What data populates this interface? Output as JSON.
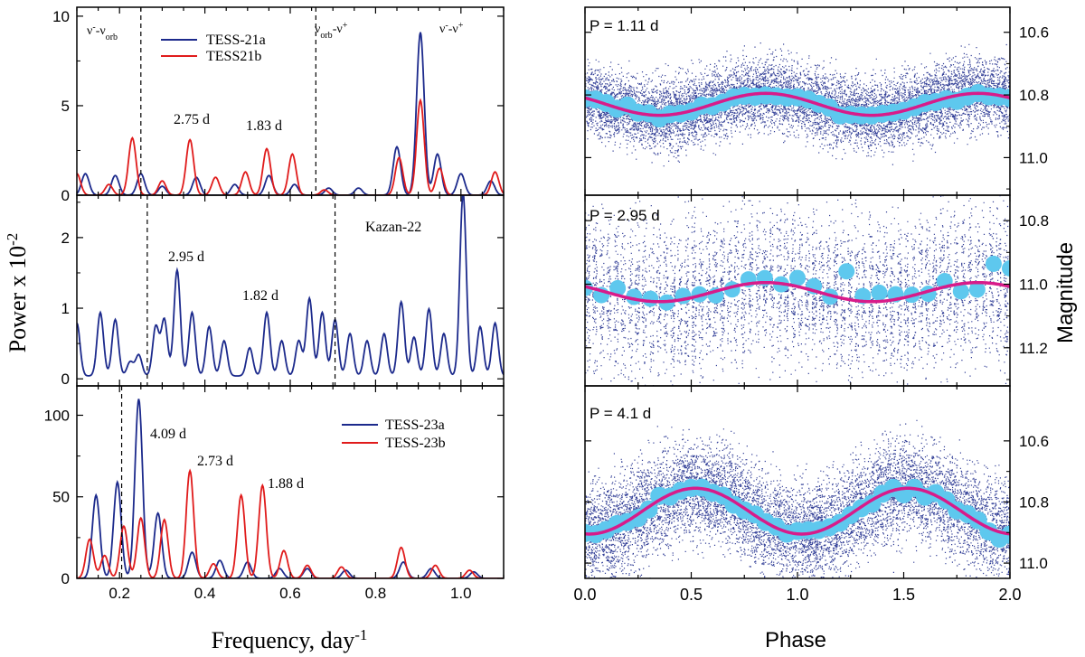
{
  "chart_data": [
    {
      "type": "line",
      "panel": "left-top",
      "xlim": [
        0.1,
        1.1
      ],
      "ylim": [
        0,
        10.5
      ],
      "yticks": [
        0,
        5,
        10
      ],
      "legend": [
        "TESS-21a",
        "TESS21b"
      ],
      "series": [
        {
          "name": "TESS-21a",
          "color": "#1c2a8c",
          "peaks": [
            [
              0.12,
              1.2
            ],
            [
              0.19,
              1.1
            ],
            [
              0.25,
              1.2
            ],
            [
              0.3,
              0.5
            ],
            [
              0.38,
              1.0
            ],
            [
              0.47,
              0.6
            ],
            [
              0.55,
              1.1
            ],
            [
              0.61,
              0.6
            ],
            [
              0.69,
              0.4
            ],
            [
              0.76,
              0.4
            ],
            [
              0.85,
              2.7
            ],
            [
              0.905,
              9.1
            ],
            [
              0.945,
              2.3
            ],
            [
              1.0,
              1.2
            ],
            [
              1.07,
              0.8
            ]
          ]
        },
        {
          "name": "TESS21b",
          "color": "#e01b1b",
          "peaks": [
            [
              0.1,
              1.2
            ],
            [
              0.175,
              0.6
            ],
            [
              0.23,
              3.2
            ],
            [
              0.3,
              0.8
            ],
            [
              0.365,
              3.1
            ],
            [
              0.425,
              1.0
            ],
            [
              0.495,
              1.3
            ],
            [
              0.545,
              2.6
            ],
            [
              0.605,
              2.3
            ],
            [
              0.68,
              0.3
            ],
            [
              0.855,
              2.1
            ],
            [
              0.905,
              5.3
            ],
            [
              0.95,
              1.5
            ],
            [
              1.08,
              1.3
            ]
          ]
        }
      ],
      "vlines": [
        0.25,
        0.66
      ],
      "annotations": [
        {
          "text": "2.75 d",
          "x": 0.365,
          "y": 3.6
        },
        {
          "text": "1.83 d",
          "x": 0.545,
          "y": 3.1
        }
      ],
      "region_labels": [
        "ν⁻-ν_orb",
        "ν_orb-ν⁺",
        "ν⁻-ν⁺"
      ]
    },
    {
      "type": "line",
      "panel": "left-middle",
      "xlim": [
        0.1,
        1.1
      ],
      "ylim": [
        -0.1,
        2.6
      ],
      "yticks": [
        0,
        1,
        2
      ],
      "legend": [
        "Kazan-22"
      ],
      "series": [
        {
          "name": "Kazan-22",
          "color": "#1c2a8c",
          "peaks": [
            [
              0.1,
              0.75
            ],
            [
              0.155,
              0.9
            ],
            [
              0.19,
              0.8
            ],
            [
              0.225,
              0.2
            ],
            [
              0.245,
              0.3
            ],
            [
              0.285,
              0.7
            ],
            [
              0.305,
              0.8
            ],
            [
              0.335,
              1.5
            ],
            [
              0.37,
              0.9
            ],
            [
              0.41,
              0.7
            ],
            [
              0.445,
              0.5
            ],
            [
              0.505,
              0.4
            ],
            [
              0.545,
              0.9
            ],
            [
              0.58,
              0.5
            ],
            [
              0.62,
              0.5
            ],
            [
              0.645,
              1.1
            ],
            [
              0.675,
              0.9
            ],
            [
              0.705,
              0.8
            ],
            [
              0.74,
              0.6
            ],
            [
              0.78,
              0.5
            ],
            [
              0.82,
              0.6
            ],
            [
              0.86,
              1.05
            ],
            [
              0.89,
              0.55
            ],
            [
              0.925,
              0.95
            ],
            [
              0.96,
              0.6
            ],
            [
              1.005,
              2.6
            ],
            [
              1.045,
              0.7
            ],
            [
              1.08,
              0.75
            ]
          ]
        }
      ],
      "vlines": [
        0.265,
        0.705
      ],
      "annotations": [
        {
          "text": "2.95 d",
          "x": 0.335,
          "y": 1.75
        },
        {
          "text": "1.82 d",
          "x": 0.545,
          "y": 1.1
        }
      ]
    },
    {
      "type": "line",
      "panel": "left-bottom",
      "xlim": [
        0.1,
        1.1
      ],
      "ylim": [
        0,
        118
      ],
      "yticks": [
        0,
        50,
        100
      ],
      "legend": [
        "TESS-23a",
        "TESS-23b"
      ],
      "series": [
        {
          "name": "TESS-23a",
          "color": "#1c2a8c",
          "peaks": [
            [
              0.145,
              51
            ],
            [
              0.195,
              59
            ],
            [
              0.245,
              110
            ],
            [
              0.29,
              40
            ],
            [
              0.37,
              16
            ],
            [
              0.435,
              11
            ],
            [
              0.5,
              10
            ],
            [
              0.575,
              6
            ],
            [
              0.64,
              6
            ],
            [
              0.73,
              5
            ],
            [
              0.865,
              10
            ],
            [
              0.93,
              6
            ],
            [
              1.03,
              4
            ]
          ]
        },
        {
          "name": "TESS-23b",
          "color": "#e01b1b",
          "peaks": [
            [
              0.13,
              24
            ],
            [
              0.165,
              14
            ],
            [
              0.21,
              32
            ],
            [
              0.25,
              37
            ],
            [
              0.305,
              36
            ],
            [
              0.365,
              66
            ],
            [
              0.42,
              9
            ],
            [
              0.485,
              51
            ],
            [
              0.535,
              57
            ],
            [
              0.585,
              17
            ],
            [
              0.64,
              8
            ],
            [
              0.72,
              7
            ],
            [
              0.86,
              19
            ],
            [
              0.94,
              8
            ],
            [
              1.02,
              5
            ]
          ]
        }
      ],
      "vlines": [
        0.205
      ],
      "annotations": [
        {
          "text": "4.09 d",
          "x": 0.245,
          "y": 110
        },
        {
          "text": "2.73 d",
          "x": 0.365,
          "y": 72
        },
        {
          "text": "1.88 d",
          "x": 0.535,
          "y": 62
        }
      ]
    },
    {
      "type": "scatter",
      "panel": "right-top",
      "period_label": "P = 1.11 d",
      "xlim": [
        0,
        2
      ],
      "ylim": [
        11.12,
        10.52
      ],
      "yticks": [
        10.6,
        10.8,
        11.0
      ],
      "mean": 10.83,
      "amplitude": 0.035,
      "spread": 0.09,
      "scatter_color": "#1c2a8c",
      "bin_color": "#5ec8ee",
      "fit_color": "#d81b8a"
    },
    {
      "type": "scatter",
      "panel": "right-middle",
      "period_label": "P = 2.95 d",
      "xlim": [
        0,
        2
      ],
      "ylim": [
        11.32,
        10.72
      ],
      "yticks": [
        10.8,
        11.0,
        11.2
      ],
      "mean": 11.025,
      "amplitude": 0.03,
      "spread": 0.12,
      "scatter_color": "#1c2a8c",
      "bin_color": "#5ec8ee",
      "fit_color": "#d81b8a"
    },
    {
      "type": "scatter",
      "panel": "right-bottom",
      "period_label": "P = 4.1 d",
      "xlim": [
        0,
        2
      ],
      "ylim": [
        11.05,
        10.42
      ],
      "yticks": [
        10.6,
        10.8,
        11.0
      ],
      "mean": 10.83,
      "amplitude": 0.075,
      "spread": 0.13,
      "scatter_color": "#1c2a8c",
      "bin_color": "#5ec8ee",
      "fit_color": "#d81b8a"
    }
  ],
  "labels": {
    "left_xlabel_main": "Frequency, day",
    "left_xlabel_sup": "-1",
    "left_ylabel_main": "Power x 10",
    "left_ylabel_sup": "-2",
    "right_xlabel": "Phase",
    "right_ylabel": "Magnitude",
    "left_xticks": [
      "0.2",
      "0.4",
      "0.6",
      "0.8",
      "1.0"
    ],
    "right_xticks": [
      "0.0",
      "0.5",
      "1.0",
      "1.5",
      "2.0"
    ],
    "legend_t21a": "TESS-21a",
    "legend_t21b": "TESS21b",
    "legend_k22": "Kazan-22",
    "legend_t23a": "TESS-23a",
    "legend_t23b": "TESS-23b",
    "p1": "P = 1.11 d",
    "p2": "P = 2.95 d",
    "p3": "P = 4.1 d",
    "a1": "2.75 d",
    "a2": "1.83 d",
    "a3": "2.95 d",
    "a4": "1.82 d",
    "a5": "4.09 d",
    "a6": "2.73 d",
    "a7": "1.88 d"
  },
  "colors": {
    "blue": "#1c2a8c",
    "red": "#e01b1b",
    "cyan": "#5ec8ee",
    "magenta": "#d81b8a"
  }
}
